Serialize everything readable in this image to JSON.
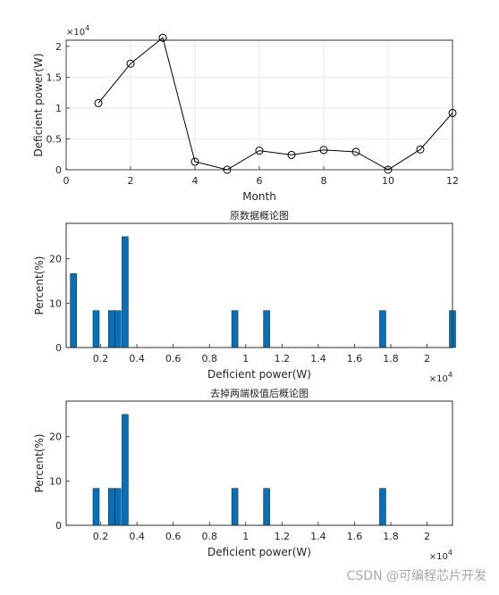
{
  "chart_data": [
    {
      "type": "line",
      "title": "",
      "xlabel": "Month",
      "ylabel": "Deficient power(W)",
      "y_exponent_label": "×10^4",
      "xlim": [
        0,
        12
      ],
      "ylim": [
        0,
        2.1
      ],
      "xticks": [
        0,
        2,
        4,
        6,
        8,
        10,
        12
      ],
      "yticks": [
        0,
        0.5,
        1,
        1.5,
        2
      ],
      "ytick_labels": [
        "0",
        "0.5",
        "1",
        "1.5",
        "2"
      ],
      "grid": true,
      "marker": "circle",
      "line_color": "#000000",
      "x": [
        1,
        2,
        3,
        4,
        5,
        6,
        7,
        8,
        9,
        10,
        11,
        12
      ],
      "y_scaled": [
        1.08,
        1.72,
        2.14,
        0.13,
        0.0,
        0.31,
        0.24,
        0.32,
        0.29,
        0.0,
        0.33,
        0.92
      ]
    },
    {
      "type": "bar",
      "title": "原数据概论图",
      "xlabel": "Deficient power(W)",
      "ylabel": "Percent(%)",
      "x_exponent_label": "×10^4",
      "xlim": [
        0.01,
        2.14
      ],
      "ylim": [
        0,
        28
      ],
      "xticks": [
        0.2,
        0.4,
        0.6,
        0.8,
        1.0,
        1.2,
        1.4,
        1.6,
        1.8,
        2.0
      ],
      "xtick_labels": [
        "0.2",
        "0.4",
        "0.6",
        "0.8",
        "1",
        "1.2",
        "1.4",
        "1.6",
        "1.8",
        "2"
      ],
      "yticks": [
        0,
        10,
        20
      ],
      "bar_color": "#0072BD",
      "x": [
        0.05,
        0.175,
        0.26,
        0.295,
        0.335,
        0.94,
        1.115,
        1.755,
        2.14
      ],
      "values": [
        16.67,
        8.33,
        8.33,
        8.33,
        25,
        8.33,
        8.33,
        8.33,
        8.33
      ]
    },
    {
      "type": "bar",
      "title": "去掉两端极值后概论图",
      "xlabel": "Deficient power(W)",
      "ylabel": "Percent(%)",
      "x_exponent_label": "×10^4",
      "xlim": [
        0.01,
        2.14
      ],
      "ylim": [
        0,
        28
      ],
      "xticks": [
        0.2,
        0.4,
        0.6,
        0.8,
        1.0,
        1.2,
        1.4,
        1.6,
        1.8,
        2.0
      ],
      "xtick_labels": [
        "0.2",
        "0.4",
        "0.6",
        "0.8",
        "1",
        "1.2",
        "1.4",
        "1.6",
        "1.8",
        "2"
      ],
      "yticks": [
        0,
        10,
        20
      ],
      "bar_color": "#0072BD",
      "x": [
        0.175,
        0.26,
        0.295,
        0.335,
        0.94,
        1.115,
        1.755
      ],
      "values": [
        8.33,
        8.33,
        8.33,
        25,
        8.33,
        8.33,
        8.33
      ]
    }
  ],
  "watermark": "CSDN @可编程芯片开发"
}
